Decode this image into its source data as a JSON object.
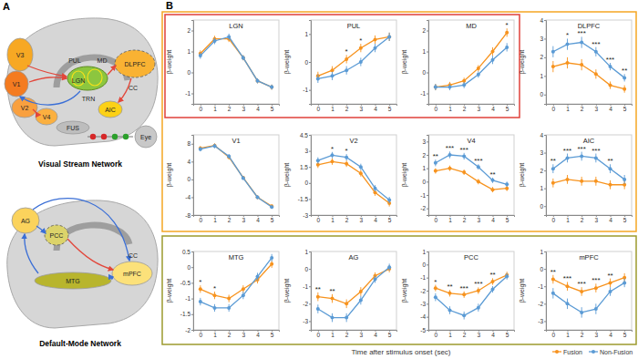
{
  "panel_labels": [
    "A",
    "B"
  ],
  "diagrams": [
    {
      "title": "Visual Stream Network",
      "regions": [
        "V3",
        "V1",
        "V2",
        "V4",
        "FUS",
        "PUL",
        "MD",
        "LGN",
        "TRN",
        "CC",
        "DLPFC",
        "AIC",
        "Eye"
      ]
    },
    {
      "title": "Default-Mode Network",
      "regions": [
        "AG",
        "PCC",
        "CC",
        "MTG",
        "mPFC"
      ]
    }
  ],
  "x_label": "Time after stimulus onset (sec)",
  "legend_items": [
    {
      "name": "Fusion",
      "color": "#f7931e"
    },
    {
      "name": "Non-Fusion",
      "color": "#5b9bd5"
    }
  ],
  "chart_data": [
    {
      "type": "line",
      "title": "LGN",
      "y_label": "β-weight",
      "x": [
        0,
        1,
        2,
        3,
        4,
        5
      ],
      "xlim": [
        -0.5,
        5.5
      ],
      "xticks": [
        0,
        1,
        2,
        3,
        4,
        5
      ],
      "ylim": [
        -1.5,
        2.5
      ],
      "yticks": [
        -1,
        0,
        1,
        2
      ],
      "series": [
        {
          "name": "Fusion",
          "values": [
            0.9,
            1.6,
            1.6,
            0.7,
            -0.4,
            -0.7
          ],
          "errors": [
            0.15,
            0.15,
            0.15,
            0.12,
            0.12,
            0.12
          ]
        },
        {
          "name": "Non-Fusion",
          "values": [
            0.8,
            1.5,
            1.7,
            0.7,
            -0.4,
            -0.7
          ],
          "errors": [
            0.15,
            0.15,
            0.15,
            0.12,
            0.12,
            0.12
          ]
        }
      ],
      "annotations": []
    },
    {
      "type": "line",
      "title": "PUL",
      "y_label": "β-weight",
      "x": [
        0,
        1,
        2,
        3,
        4,
        5
      ],
      "xlim": [
        -0.5,
        5.5
      ],
      "xticks": [
        0,
        1,
        2,
        3,
        4,
        5
      ],
      "ylim": [
        -1.5,
        1.5
      ],
      "yticks": [
        -1,
        0,
        1
      ],
      "series": [
        {
          "name": "Fusion",
          "values": [
            -0.5,
            -0.3,
            0.1,
            0.5,
            0.8,
            0.9
          ],
          "errors": [
            0.15,
            0.15,
            0.15,
            0.15,
            0.15,
            0.15
          ]
        },
        {
          "name": "Non-Fusion",
          "values": [
            -0.6,
            -0.5,
            -0.3,
            0.0,
            0.5,
            0.9
          ],
          "errors": [
            0.15,
            0.15,
            0.15,
            0.15,
            0.15,
            0.15
          ]
        }
      ],
      "annotations": [
        {
          "x": 2,
          "label": "*"
        },
        {
          "x": 3,
          "label": "*"
        }
      ]
    },
    {
      "type": "line",
      "title": "MD",
      "y_label": "β-weight",
      "x": [
        0,
        1,
        2,
        3,
        4,
        5
      ],
      "xlim": [
        -0.5,
        5.5
      ],
      "xticks": [
        0,
        1,
        2,
        3,
        4,
        5
      ],
      "ylim": [
        -1.5,
        2.5
      ],
      "yticks": [
        -1,
        0,
        1,
        2
      ],
      "series": [
        {
          "name": "Fusion",
          "values": [
            -0.7,
            -0.6,
            -0.4,
            0.2,
            1.0,
            1.9
          ],
          "errors": [
            0.15,
            0.15,
            0.15,
            0.15,
            0.2,
            0.2
          ]
        },
        {
          "name": "Non-Fusion",
          "values": [
            -0.7,
            -0.7,
            -0.6,
            -0.1,
            0.6,
            1.2
          ],
          "errors": [
            0.15,
            0.15,
            0.15,
            0.15,
            0.2,
            0.2
          ]
        }
      ],
      "annotations": [
        {
          "x": 5,
          "label": "*"
        }
      ]
    },
    {
      "type": "line",
      "title": "DLPFC",
      "y_label": "β-weight",
      "x": [
        0,
        1,
        2,
        3,
        4,
        5
      ],
      "xlim": [
        -0.5,
        5.5
      ],
      "xticks": [
        0,
        1,
        2,
        3,
        4,
        5
      ],
      "ylim": [
        -0.5,
        4
      ],
      "yticks": [
        0,
        1,
        2,
        3,
        4
      ],
      "series": [
        {
          "name": "Fusion",
          "values": [
            1.5,
            1.7,
            1.6,
            1.1,
            0.5,
            0.3
          ],
          "errors": [
            0.3,
            0.3,
            0.3,
            0.25,
            0.2,
            0.2
          ]
        },
        {
          "name": "Non-Fusion",
          "values": [
            2.3,
            2.7,
            2.8,
            2.3,
            1.5,
            0.9
          ],
          "errors": [
            0.3,
            0.3,
            0.3,
            0.25,
            0.2,
            0.2
          ]
        }
      ],
      "annotations": [
        {
          "x": 1,
          "label": "*"
        },
        {
          "x": 2,
          "label": "***"
        },
        {
          "x": 3,
          "label": "***"
        },
        {
          "x": 4,
          "label": "***"
        },
        {
          "x": 5,
          "label": "**"
        }
      ]
    },
    {
      "type": "line",
      "title": "V1",
      "y_label": "β-weight",
      "x": [
        0,
        1,
        2,
        3,
        4,
        5
      ],
      "xlim": [
        -0.5,
        5.5
      ],
      "xticks": [
        0,
        1,
        2,
        3,
        4,
        5
      ],
      "ylim": [
        -8,
        10
      ],
      "yticks": [
        -8,
        -4,
        0,
        4,
        8
      ],
      "series": [
        {
          "name": "Fusion",
          "values": [
            7,
            7.6,
            5,
            0.4,
            -4,
            -6
          ],
          "errors": [
            0.5,
            0.5,
            0.5,
            0.4,
            0.4,
            0.4
          ]
        },
        {
          "name": "Non-Fusion",
          "values": [
            6.8,
            7.5,
            5.2,
            0.3,
            -4,
            -6.2
          ],
          "errors": [
            0.5,
            0.5,
            0.5,
            0.4,
            0.4,
            0.4
          ]
        }
      ],
      "annotations": []
    },
    {
      "type": "line",
      "title": "V2",
      "y_label": "β-weight",
      "x": [
        0,
        1,
        2,
        3,
        4,
        5
      ],
      "xlim": [
        -0.5,
        5.5
      ],
      "xticks": [
        0,
        1,
        2,
        3,
        4,
        5
      ],
      "ylim": [
        -3,
        4.5
      ],
      "yticks": [
        -3,
        -1.5,
        0,
        1.5,
        3,
        4.5
      ],
      "series": [
        {
          "name": "Fusion",
          "values": [
            1.7,
            2.0,
            1.8,
            0.9,
            -0.9,
            -1.9
          ],
          "errors": [
            0.3,
            0.3,
            0.3,
            0.3,
            0.3,
            0.3
          ]
        },
        {
          "name": "Non-Fusion",
          "values": [
            2.1,
            2.6,
            2.4,
            1.5,
            -0.5,
            -1.6
          ],
          "errors": [
            0.3,
            0.3,
            0.3,
            0.3,
            0.3,
            0.3
          ]
        }
      ],
      "annotations": [
        {
          "x": 1,
          "label": "*"
        },
        {
          "x": 2,
          "label": "*"
        }
      ]
    },
    {
      "type": "line",
      "title": "V4",
      "y_label": "β-weight",
      "x": [
        0,
        1,
        2,
        3,
        4,
        5
      ],
      "xlim": [
        -0.5,
        5.5
      ],
      "xticks": [
        0,
        1,
        2,
        3,
        4,
        5
      ],
      "ylim": [
        -2.5,
        3.5
      ],
      "yticks": [
        -2,
        -1,
        0,
        1,
        2,
        3
      ],
      "series": [
        {
          "name": "Fusion",
          "values": [
            0.8,
            1.0,
            0.7,
            0.0,
            -0.6,
            -0.5
          ],
          "errors": [
            0.2,
            0.2,
            0.2,
            0.2,
            0.2,
            0.2
          ]
        },
        {
          "name": "Non-Fusion",
          "values": [
            1.4,
            2.0,
            1.9,
            1.1,
            0.1,
            -0.2
          ],
          "errors": [
            0.25,
            0.25,
            0.25,
            0.2,
            0.2,
            0.2
          ]
        }
      ],
      "annotations": [
        {
          "x": 0,
          "label": "**"
        },
        {
          "x": 1,
          "label": "***"
        },
        {
          "x": 2,
          "label": "***"
        },
        {
          "x": 3,
          "label": "***"
        },
        {
          "x": 4,
          "label": "**"
        }
      ]
    },
    {
      "type": "line",
      "title": "AIC",
      "y_label": "β-weight",
      "x": [
        0,
        1,
        2,
        3,
        4,
        5
      ],
      "xlim": [
        -0.5,
        5.5
      ],
      "xticks": [
        0,
        1,
        2,
        3,
        4,
        5
      ],
      "ylim": [
        -0.5,
        4
      ],
      "yticks": [
        0,
        1,
        2,
        3,
        4
      ],
      "series": [
        {
          "name": "Fusion",
          "values": [
            1.3,
            1.5,
            1.4,
            1.4,
            1.2,
            1.2
          ],
          "errors": [
            0.25,
            0.25,
            0.25,
            0.25,
            0.25,
            0.25
          ]
        },
        {
          "name": "Non-Fusion",
          "values": [
            2.1,
            2.7,
            2.8,
            2.7,
            2.1,
            1.5
          ],
          "errors": [
            0.25,
            0.25,
            0.25,
            0.25,
            0.25,
            0.25
          ]
        }
      ],
      "annotations": [
        {
          "x": 0,
          "label": "**"
        },
        {
          "x": 1,
          "label": "***"
        },
        {
          "x": 2,
          "label": "***"
        },
        {
          "x": 3,
          "label": "***"
        },
        {
          "x": 4,
          "label": "**"
        }
      ]
    },
    {
      "type": "line",
      "title": "MTG",
      "y_label": "β-weight",
      "x": [
        0,
        1,
        2,
        3,
        4,
        5
      ],
      "xlim": [
        -0.5,
        5.5
      ],
      "xticks": [
        0,
        1,
        2,
        3,
        4,
        5
      ],
      "ylim": [
        -2,
        0.5
      ],
      "yticks": [
        -2,
        -1.5,
        -1,
        -0.5,
        0,
        0.5
      ],
      "series": [
        {
          "name": "Fusion",
          "values": [
            -0.7,
            -0.9,
            -1.0,
            -0.7,
            -0.4,
            0.1
          ],
          "errors": [
            0.12,
            0.12,
            0.12,
            0.12,
            0.12,
            0.12
          ]
        },
        {
          "name": "Non-Fusion",
          "values": [
            -1.1,
            -1.3,
            -1.3,
            -0.9,
            -0.3,
            0.3
          ],
          "errors": [
            0.12,
            0.12,
            0.12,
            0.12,
            0.12,
            0.12
          ]
        }
      ],
      "annotations": [
        {
          "x": 0,
          "label": "*"
        },
        {
          "x": 1,
          "label": "*"
        }
      ]
    },
    {
      "type": "line",
      "title": "AG",
      "y_label": "β-weight",
      "x": [
        0,
        1,
        2,
        3,
        4,
        5
      ],
      "xlim": [
        -0.5,
        5.5
      ],
      "xticks": [
        0,
        1,
        2,
        3,
        4,
        5
      ],
      "ylim": [
        -3.5,
        1
      ],
      "yticks": [
        -3,
        -2,
        -1,
        0,
        1
      ],
      "series": [
        {
          "name": "Fusion",
          "values": [
            -1.6,
            -1.7,
            -2.0,
            -1.3,
            -0.4,
            0.0
          ],
          "errors": [
            0.25,
            0.25,
            0.25,
            0.25,
            0.2,
            0.2
          ]
        },
        {
          "name": "Non-Fusion",
          "values": [
            -2.3,
            -2.8,
            -2.8,
            -1.8,
            -0.6,
            0.1
          ],
          "errors": [
            0.25,
            0.25,
            0.25,
            0.25,
            0.2,
            0.2
          ]
        }
      ],
      "annotations": [
        {
          "x": 0,
          "label": "**"
        },
        {
          "x": 1,
          "label": "**"
        }
      ]
    },
    {
      "type": "line",
      "title": "PCC",
      "y_label": "β-weight",
      "x": [
        0,
        1,
        2,
        3,
        4,
        5
      ],
      "xlim": [
        -0.5,
        5.5
      ],
      "xticks": [
        0,
        1,
        2,
        3,
        4,
        5
      ],
      "ylim": [
        -5,
        1
      ],
      "yticks": [
        -5,
        -4,
        -3,
        -2,
        -1,
        0,
        1
      ],
      "series": [
        {
          "name": "Fusion",
          "values": [
            -1.8,
            -2.2,
            -2.3,
            -2.0,
            -1.3,
            -0.8
          ],
          "errors": [
            0.25,
            0.25,
            0.25,
            0.25,
            0.25,
            0.25
          ]
        },
        {
          "name": "Non-Fusion",
          "values": [
            -2.5,
            -3.5,
            -3.9,
            -3.3,
            -1.9,
            -0.9
          ],
          "errors": [
            0.3,
            0.3,
            0.3,
            0.3,
            0.25,
            0.25
          ]
        }
      ],
      "annotations": [
        {
          "x": 0,
          "label": "*"
        },
        {
          "x": 1,
          "label": "**"
        },
        {
          "x": 2,
          "label": "***"
        },
        {
          "x": 3,
          "label": "***"
        },
        {
          "x": 4,
          "label": "**"
        }
      ]
    },
    {
      "type": "line",
      "title": "mPFC",
      "y_label": "β-weight",
      "x": [
        0,
        1,
        2,
        3,
        4,
        5
      ],
      "xlim": [
        -0.5,
        5.5
      ],
      "xticks": [
        0,
        1,
        2,
        3,
        4,
        5
      ],
      "ylim": [
        -3.5,
        1
      ],
      "yticks": [
        -3,
        -2,
        -1,
        0,
        1
      ],
      "series": [
        {
          "name": "Fusion",
          "values": [
            -0.6,
            -1.0,
            -1.3,
            -1.1,
            -0.8,
            -0.5
          ],
          "errors": [
            0.25,
            0.25,
            0.25,
            0.25,
            0.25,
            0.25
          ]
        },
        {
          "name": "Non-Fusion",
          "values": [
            -1.4,
            -2.0,
            -2.5,
            -2.3,
            -1.3,
            -0.8
          ],
          "errors": [
            0.3,
            0.3,
            0.3,
            0.3,
            0.25,
            0.25
          ]
        }
      ],
      "annotations": [
        {
          "x": 0,
          "label": "**"
        },
        {
          "x": 1,
          "label": "***"
        },
        {
          "x": 2,
          "label": "***"
        },
        {
          "x": 3,
          "label": "***"
        },
        {
          "x": 4,
          "label": "**"
        }
      ]
    }
  ]
}
